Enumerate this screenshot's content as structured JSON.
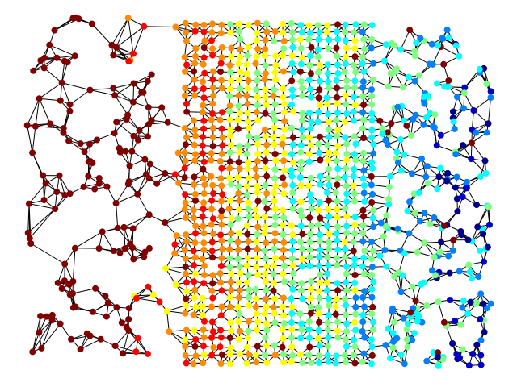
{
  "graph": {
    "edge_color": "#000000",
    "background": "#ffffff",
    "colormap": "jet",
    "colormap_stops": [
      "#800000",
      "#ff0000",
      "#ff8c00",
      "#ffff00",
      "#7fff7f",
      "#00ffff",
      "#0080ff",
      "#0000cd",
      "#00008b"
    ]
  }
}
